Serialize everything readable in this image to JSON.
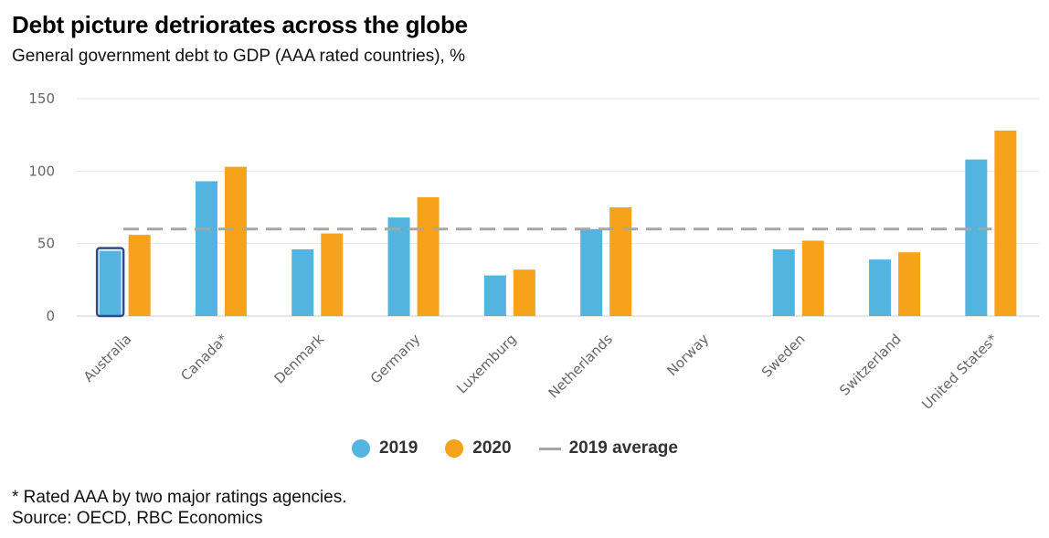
{
  "title": "Debt picture detriorates across the globe",
  "subtitle": "General government debt to GDP (AAA rated countries), %",
  "footnote": "* Rated AAA by two major ratings agencies.",
  "source": "Source: OECD, RBC Economics",
  "colors": {
    "s2019": "#54b4e0",
    "s2020": "#f7a21b",
    "average": "#a6a6a6",
    "highlight": "#2c4a8c",
    "grid": "#e6e6e6"
  },
  "legend": {
    "s2019": "2019",
    "s2020": "2020",
    "average": "2019 average"
  },
  "chart_data": {
    "type": "bar",
    "categories": [
      "Australia",
      "Canada*",
      "Denmark",
      "Germany",
      "Luxemburg",
      "Netherlands",
      "Norway",
      "Sweden",
      "Switzerland",
      "United States*"
    ],
    "series": [
      {
        "name": "2019",
        "values": [
          45,
          93,
          46,
          68,
          28,
          60,
          null,
          46,
          39,
          108
        ]
      },
      {
        "name": "2020",
        "values": [
          56,
          103,
          57,
          82,
          32,
          75,
          null,
          52,
          44,
          128
        ]
      }
    ],
    "average": {
      "name": "2019 average",
      "value": 60
    },
    "highlighted_category": "Australia",
    "ylim": [
      0,
      150
    ],
    "yticks": [
      0,
      50,
      100,
      150
    ],
    "grid": true,
    "legend_position": "bottom",
    "title": "",
    "xlabel": "",
    "ylabel": ""
  }
}
